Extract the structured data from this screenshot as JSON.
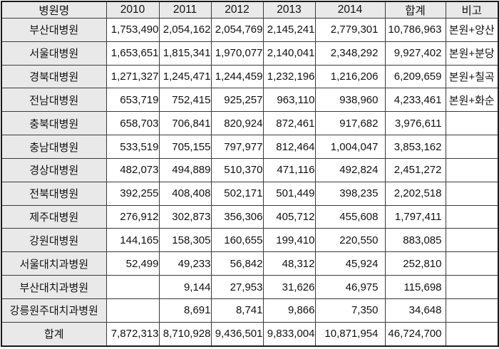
{
  "colors": {
    "header_bg": "#e9e9e9",
    "label_bg": "#e9e9e9",
    "cell_bg": "#ffffff",
    "border_inner": "#3a3a3a",
    "border_outer": "#1a1a1a",
    "text": "#111111"
  },
  "table": {
    "columns": [
      "병원명",
      "2010",
      "2011",
      "2012",
      "2013",
      "2014",
      "합계",
      "비고"
    ],
    "rows": [
      {
        "cells": [
          "부산대병원",
          "1,753,490",
          "2,054,162",
          "2,054,769",
          "2,145,241",
          "2,779,301",
          "10,786,963",
          "본원+양산"
        ],
        "is_total": false
      },
      {
        "cells": [
          "서울대병원",
          "1,653,651",
          "1,815,341",
          "1,970,077",
          "2,140,041",
          "2,348,292",
          "9,927,402",
          "본원+분당"
        ],
        "is_total": false
      },
      {
        "cells": [
          "경북대병원",
          "1,271,327",
          "1,245,471",
          "1,244,459",
          "1,232,196",
          "1,216,206",
          "6,209,659",
          "본원+칠곡"
        ],
        "is_total": false
      },
      {
        "cells": [
          "전남대병원",
          "653,719",
          "752,415",
          "925,257",
          "963,110",
          "938,960",
          "4,233,461",
          "본원+화순"
        ],
        "is_total": false
      },
      {
        "cells": [
          "충북대병원",
          "658,703",
          "706,841",
          "820,924",
          "872,461",
          "917,682",
          "3,976,611",
          ""
        ],
        "is_total": false
      },
      {
        "cells": [
          "충남대병원",
          "533,519",
          "705,155",
          "797,977",
          "812,464",
          "1,004,047",
          "3,853,162",
          ""
        ],
        "is_total": false
      },
      {
        "cells": [
          "경상대병원",
          "482,073",
          "494,889",
          "510,370",
          "471,116",
          "492,824",
          "2,451,272",
          ""
        ],
        "is_total": false
      },
      {
        "cells": [
          "전북대병원",
          "392,255",
          "408,408",
          "502,171",
          "501,449",
          "398,235",
          "2,202,518",
          ""
        ],
        "is_total": false
      },
      {
        "cells": [
          "제주대병원",
          "276,912",
          "302,873",
          "356,306",
          "405,712",
          "455,608",
          "1,797,411",
          ""
        ],
        "is_total": false
      },
      {
        "cells": [
          "강원대병원",
          "144,165",
          "158,305",
          "160,655",
          "199,410",
          "220,550",
          "883,085",
          ""
        ],
        "is_total": false
      },
      {
        "cells": [
          "서울대치과병원",
          "52,499",
          "49,233",
          "56,842",
          "48,312",
          "45,924",
          "252,810",
          ""
        ],
        "is_total": false
      },
      {
        "cells": [
          "부산대치과병원",
          "",
          "9,144",
          "27,953",
          "31,626",
          "46,975",
          "115,698",
          ""
        ],
        "is_total": false
      },
      {
        "cells": [
          "강릉원주대치과병원",
          "",
          "8,691",
          "8,741",
          "9,866",
          "7,350",
          "34,648",
          ""
        ],
        "is_total": false
      },
      {
        "cells": [
          "합계",
          "7,872,313",
          "8,710,928",
          "9,436,501",
          "9,833,004",
          "10,871,954",
          "46,724,700",
          ""
        ],
        "is_total": true
      }
    ]
  }
}
